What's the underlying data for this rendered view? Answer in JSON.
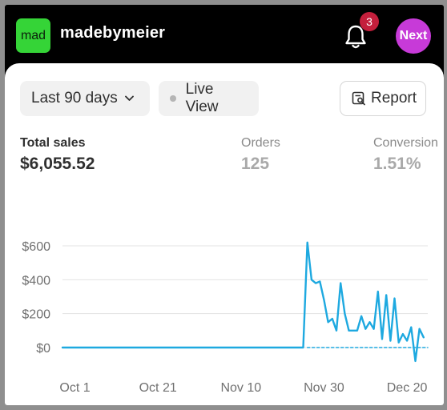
{
  "topbar": {
    "logo_text": "mad",
    "store_name": "madebymeier",
    "notification_count": "3",
    "avatar_label": "Next",
    "colors": {
      "logo": "#35d437",
      "badge": "#c41f3c",
      "avatar": "#c73ad8"
    }
  },
  "filters": {
    "date_range": "Last 90 days",
    "live_view": "Live View",
    "report": "Report"
  },
  "metrics": [
    {
      "label": "Total sales",
      "value": "$6,055.52"
    },
    {
      "label": "Orders",
      "value": "125"
    },
    {
      "label": "Conversion",
      "value": "1.51%"
    }
  ],
  "chart_data": {
    "type": "line",
    "y_tick_labels": [
      "$600",
      "$400",
      "$200",
      "$0"
    ],
    "x_tick_labels": [
      "Oct 1",
      "Oct 21",
      "Nov 10",
      "Nov 30",
      "Dec 20"
    ],
    "ylim": [
      0,
      600
    ],
    "grid": true,
    "line_color": "#1ea9e0",
    "series": [
      {
        "style": "solid",
        "points": [
          [
            "Sep 28",
            0
          ],
          [
            "Oct 10",
            0
          ],
          [
            "Oct 25",
            0
          ],
          [
            "Nov 10",
            0
          ],
          [
            "Nov 22",
            0
          ],
          [
            "Nov 25",
            0
          ],
          [
            "Nov 26",
            620
          ],
          [
            "Nov 27",
            400
          ],
          [
            "Nov 28",
            380
          ],
          [
            "Nov 29",
            390
          ],
          [
            "Nov 30",
            280
          ],
          [
            "Dec 1",
            150
          ],
          [
            "Dec 2",
            170
          ],
          [
            "Dec 3",
            100
          ],
          [
            "Dec 4",
            380
          ],
          [
            "Dec 5",
            200
          ],
          [
            "Dec 6",
            100
          ],
          [
            "Dec 8",
            100
          ],
          [
            "Dec 9",
            185
          ],
          [
            "Dec 10",
            110
          ],
          [
            "Dec 11",
            150
          ],
          [
            "Dec 12",
            110
          ],
          [
            "Dec 13",
            330
          ],
          [
            "Dec 14",
            50
          ],
          [
            "Dec 15",
            310
          ],
          [
            "Dec 16",
            40
          ],
          [
            "Dec 17",
            290
          ],
          [
            "Dec 18",
            30
          ],
          [
            "Dec 19",
            80
          ],
          [
            "Dec 20",
            40
          ],
          [
            "Dec 21",
            120
          ],
          [
            "Dec 22",
            -80
          ],
          [
            "Dec 23",
            110
          ],
          [
            "Dec 24",
            60
          ]
        ]
      },
      {
        "style": "dashed",
        "points": [
          [
            "Nov 26",
            0
          ],
          [
            "Dec 25",
            0
          ]
        ]
      }
    ]
  }
}
